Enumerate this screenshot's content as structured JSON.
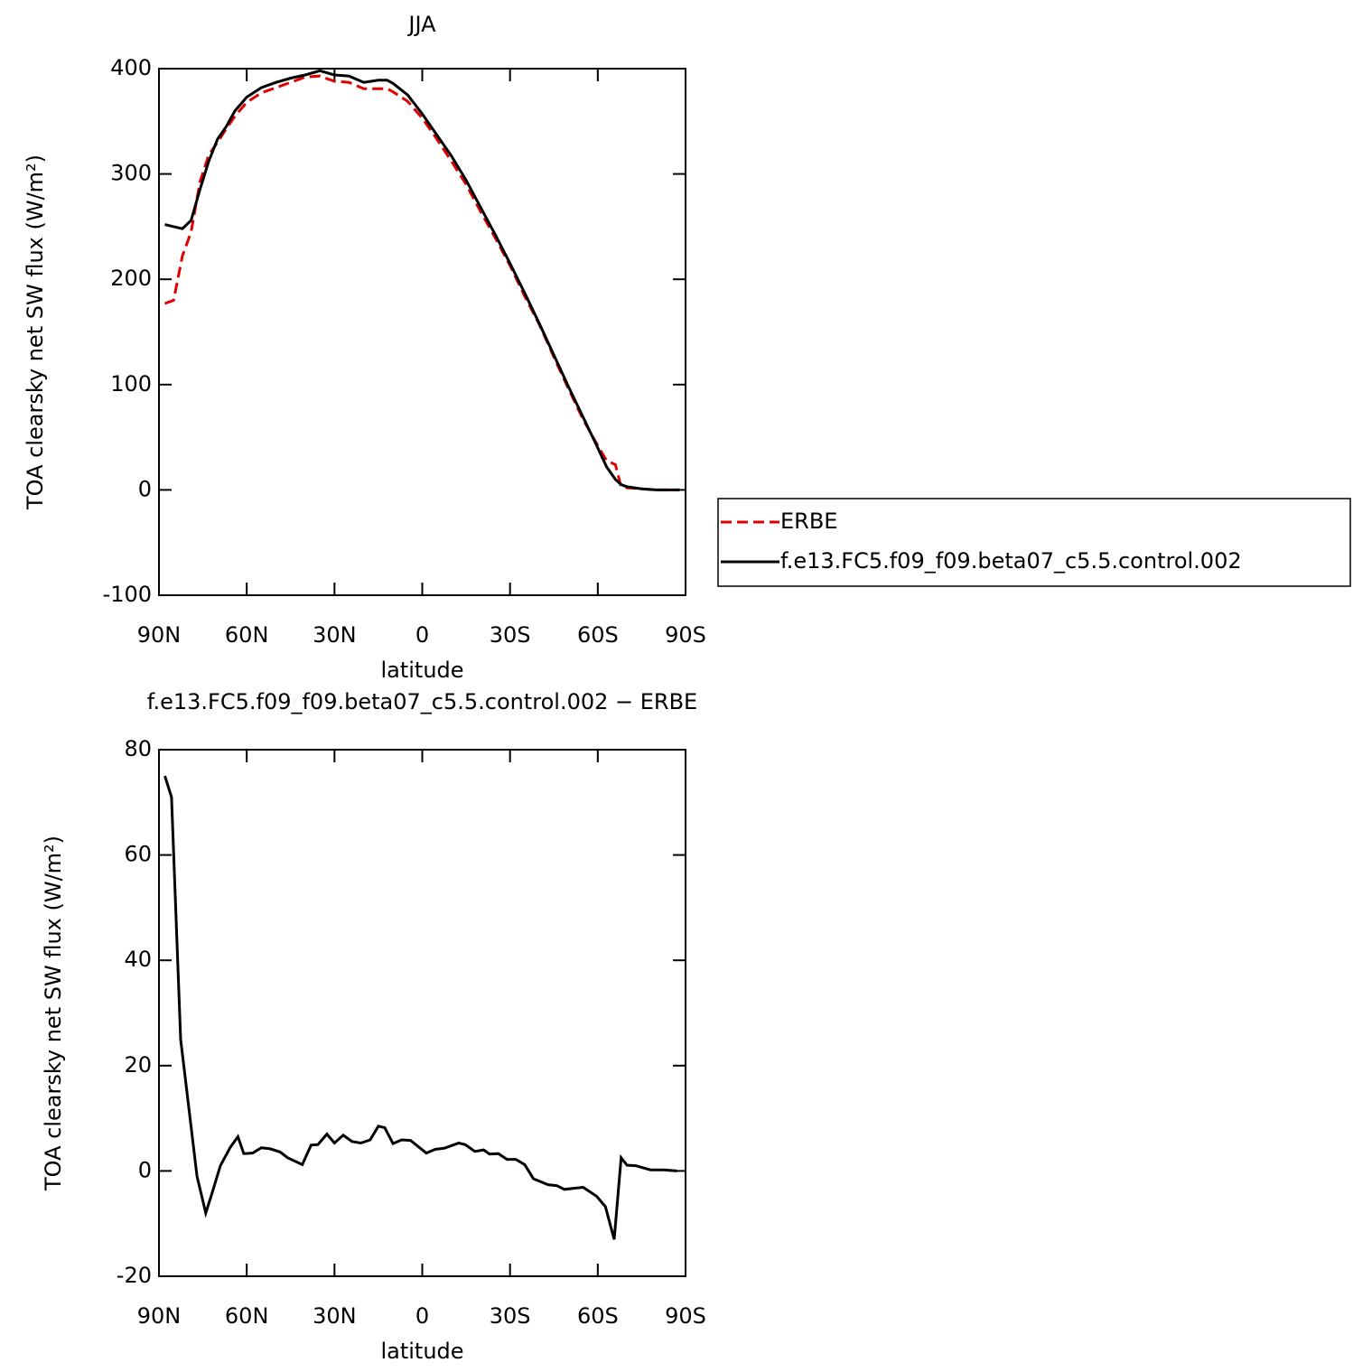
{
  "chart_data": [
    {
      "type": "line",
      "title": "JJA",
      "xlabel": "latitude",
      "ylabel": "TOA clearsky net SW flux (W/m²)",
      "xlim": [
        90,
        -90
      ],
      "xticks": [
        {
          "value": 90,
          "label": "90N"
        },
        {
          "value": 60,
          "label": "60N"
        },
        {
          "value": 30,
          "label": "30N"
        },
        0,
        {
          "value": -30,
          "label": "30S"
        },
        {
          "value": -60,
          "label": "60S"
        },
        {
          "value": -90,
          "label": "90S"
        }
      ],
      "ylim": [
        -100,
        400
      ],
      "yticks": [
        -100,
        0,
        100,
        200,
        300,
        400
      ],
      "legend": "right",
      "x": [
        88,
        85,
        82,
        79,
        76,
        73,
        70,
        67,
        64,
        60,
        55,
        50,
        45,
        40,
        35,
        30,
        25,
        20,
        15,
        12,
        10,
        5,
        0,
        -5,
        -10,
        -15,
        -20,
        -25,
        -30,
        -35,
        -40,
        -45,
        -50,
        -55,
        -60,
        -63,
        -66,
        -68,
        -70,
        -75,
        -80,
        -85,
        -88
      ],
      "series": [
        {
          "name": "ERBE",
          "color": "#e00000",
          "dash": true,
          "values": [
            177,
            180,
            222,
            245,
            292,
            318,
            330,
            343,
            355,
            368,
            377,
            382,
            387,
            392,
            393,
            388,
            387,
            381,
            381,
            381,
            378,
            369,
            353,
            333,
            312,
            290,
            264,
            239,
            213,
            184,
            157,
            126,
            96,
            67,
            42,
            28,
            24,
            3,
            2,
            1,
            0,
            0,
            0
          ]
        },
        {
          "name": "f.e13.FC5.f09_f09.beta07_c5.5.control.002",
          "color": "#000000",
          "dash": false,
          "values": [
            252,
            250,
            248,
            256,
            285,
            312,
            333,
            345,
            360,
            373,
            382,
            387,
            391,
            394,
            398,
            394,
            393,
            387,
            389,
            389,
            386,
            375,
            357,
            337,
            317,
            294,
            268,
            242,
            215,
            187,
            158,
            128,
            98,
            69,
            40,
            22,
            10,
            5,
            3,
            1,
            0,
            0,
            0
          ]
        }
      ]
    },
    {
      "type": "line",
      "title": "f.e13.FC5.f09_f09.beta07_c5.5.control.002 − ERBE",
      "xlabel": "latitude",
      "ylabel": "TOA clearsky net SW flux (W/m²)",
      "xlim": [
        90,
        -90
      ],
      "xticks": [
        {
          "value": 90,
          "label": "90N"
        },
        {
          "value": 60,
          "label": "60N"
        },
        {
          "value": 30,
          "label": "30N"
        },
        0,
        {
          "value": -30,
          "label": "30S"
        },
        {
          "value": -60,
          "label": "60S"
        },
        {
          "value": -90,
          "label": "90S"
        }
      ],
      "ylim": [
        -20,
        80
      ],
      "yticks": [
        -20,
        0,
        20,
        40,
        60,
        80
      ],
      "x": [
        88,
        85.7,
        82.6,
        77,
        74,
        72,
        69,
        65.6,
        63,
        61,
        58,
        55,
        52,
        48.6,
        46,
        41,
        38,
        35.7,
        32.6,
        30,
        27,
        24,
        21,
        17.8,
        15,
        12.8,
        10,
        7,
        4,
        -1.4,
        -4.4,
        -7.5,
        -12.5,
        -14.7,
        -18,
        -21,
        -23,
        -26,
        -29,
        -32,
        -35,
        -38,
        -43,
        -46,
        -48.6,
        -55,
        -59.6,
        -62.6,
        -65.6,
        -68,
        -70,
        -73,
        -78,
        -82.6,
        -87
      ],
      "series": [
        {
          "color": "#000000",
          "dash": false,
          "values": [
            75,
            71,
            25,
            -1,
            -8,
            -4.5,
            1,
            4.5,
            6.5,
            3.3,
            3.4,
            4.4,
            4.2,
            3.6,
            2.5,
            1.2,
            4.9,
            5,
            7,
            5.3,
            6.8,
            5.6,
            5.3,
            5.9,
            8.5,
            8.2,
            5.2,
            5.9,
            5.8,
            3.4,
            4.1,
            4.3,
            5.3,
            5,
            3.7,
            4,
            3.2,
            3.3,
            2.2,
            2.2,
            1.2,
            -1.5,
            -2.6,
            -2.8,
            -3.5,
            -3.1,
            -4.8,
            -6.8,
            -13,
            2.5,
            1.1,
            1,
            0.2,
            0.2,
            0
          ]
        }
      ]
    }
  ]
}
